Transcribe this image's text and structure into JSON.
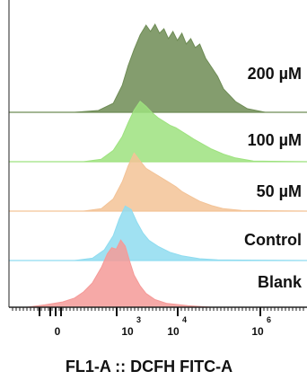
{
  "chart_data": {
    "type": "area",
    "subtype": "stacked-histogram-overlay",
    "xlabel": "FL1-A :: DCFH FITC-A",
    "x_scale": "biexponential",
    "x_ticks": [
      {
        "base": "0",
        "exp": ""
      },
      {
        "base": "10",
        "exp": "3"
      },
      {
        "base": "10",
        "exp": "4"
      },
      {
        "base": "10",
        "exp": "6"
      }
    ],
    "series": [
      {
        "name": "200 µM",
        "color": "#6e8c55",
        "points": [
          [
            0.0,
            0.0
          ],
          [
            0.22,
            0.0
          ],
          [
            0.3,
            0.02
          ],
          [
            0.35,
            0.1
          ],
          [
            0.38,
            0.3
          ],
          [
            0.4,
            0.52
          ],
          [
            0.42,
            0.7
          ],
          [
            0.44,
            0.86
          ],
          [
            0.46,
            0.97
          ],
          [
            0.475,
            0.9
          ],
          [
            0.49,
            0.98
          ],
          [
            0.505,
            0.88
          ],
          [
            0.52,
            0.93
          ],
          [
            0.535,
            0.82
          ],
          [
            0.55,
            0.9
          ],
          [
            0.565,
            0.8
          ],
          [
            0.58,
            0.88
          ],
          [
            0.595,
            0.76
          ],
          [
            0.61,
            0.82
          ],
          [
            0.625,
            0.72
          ],
          [
            0.64,
            0.76
          ],
          [
            0.66,
            0.6
          ],
          [
            0.68,
            0.5
          ],
          [
            0.7,
            0.4
          ],
          [
            0.72,
            0.26
          ],
          [
            0.76,
            0.12
          ],
          [
            0.8,
            0.04
          ],
          [
            0.86,
            0.0
          ],
          [
            1.0,
            0.0
          ]
        ]
      },
      {
        "name": "100 µM",
        "color": "#9ee27f",
        "points": [
          [
            0.0,
            0.0
          ],
          [
            0.25,
            0.0
          ],
          [
            0.31,
            0.04
          ],
          [
            0.35,
            0.18
          ],
          [
            0.38,
            0.4
          ],
          [
            0.4,
            0.62
          ],
          [
            0.42,
            0.82
          ],
          [
            0.44,
            0.96
          ],
          [
            0.46,
            0.88
          ],
          [
            0.48,
            0.78
          ],
          [
            0.5,
            0.7
          ],
          [
            0.52,
            0.64
          ],
          [
            0.54,
            0.58
          ],
          [
            0.56,
            0.54
          ],
          [
            0.58,
            0.48
          ],
          [
            0.6,
            0.42
          ],
          [
            0.62,
            0.36
          ],
          [
            0.65,
            0.28
          ],
          [
            0.68,
            0.2
          ],
          [
            0.72,
            0.12
          ],
          [
            0.76,
            0.06
          ],
          [
            0.82,
            0.01
          ],
          [
            1.0,
            0.0
          ]
        ]
      },
      {
        "name": "50 µM",
        "color": "#f3c397",
        "points": [
          [
            0.0,
            0.0
          ],
          [
            0.25,
            0.0
          ],
          [
            0.31,
            0.04
          ],
          [
            0.35,
            0.2
          ],
          [
            0.38,
            0.48
          ],
          [
            0.4,
            0.74
          ],
          [
            0.42,
            0.95
          ],
          [
            0.44,
            0.82
          ],
          [
            0.46,
            0.7
          ],
          [
            0.48,
            0.64
          ],
          [
            0.5,
            0.58
          ],
          [
            0.52,
            0.52
          ],
          [
            0.54,
            0.46
          ],
          [
            0.56,
            0.4
          ],
          [
            0.58,
            0.32
          ],
          [
            0.61,
            0.24
          ],
          [
            0.64,
            0.16
          ],
          [
            0.68,
            0.09
          ],
          [
            0.72,
            0.04
          ],
          [
            0.78,
            0.01
          ],
          [
            1.0,
            0.0
          ]
        ]
      },
      {
        "name": "Control",
        "color": "#8fdcf0",
        "points": [
          [
            0.0,
            0.0
          ],
          [
            0.22,
            0.0
          ],
          [
            0.28,
            0.04
          ],
          [
            0.32,
            0.18
          ],
          [
            0.35,
            0.42
          ],
          [
            0.37,
            0.7
          ],
          [
            0.39,
            0.92
          ],
          [
            0.41,
            0.86
          ],
          [
            0.43,
            0.64
          ],
          [
            0.45,
            0.46
          ],
          [
            0.47,
            0.34
          ],
          [
            0.5,
            0.24
          ],
          [
            0.54,
            0.14
          ],
          [
            0.58,
            0.08
          ],
          [
            0.64,
            0.03
          ],
          [
            0.7,
            0.01
          ],
          [
            1.0,
            0.0
          ]
        ]
      },
      {
        "name": "Blank",
        "color": "#f59a98",
        "points": [
          [
            0.0,
            0.0
          ],
          [
            0.06,
            0.0
          ],
          [
            0.12,
            0.03
          ],
          [
            0.18,
            0.07
          ],
          [
            0.22,
            0.12
          ],
          [
            0.25,
            0.2
          ],
          [
            0.28,
            0.32
          ],
          [
            0.31,
            0.52
          ],
          [
            0.33,
            0.7
          ],
          [
            0.345,
            0.78
          ],
          [
            0.36,
            0.76
          ],
          [
            0.375,
            0.88
          ],
          [
            0.39,
            0.8
          ],
          [
            0.405,
            0.6
          ],
          [
            0.42,
            0.42
          ],
          [
            0.44,
            0.28
          ],
          [
            0.46,
            0.18
          ],
          [
            0.49,
            0.1
          ],
          [
            0.53,
            0.05
          ],
          [
            0.6,
            0.02
          ],
          [
            0.68,
            0.0
          ],
          [
            1.0,
            0.0
          ]
        ]
      }
    ]
  }
}
